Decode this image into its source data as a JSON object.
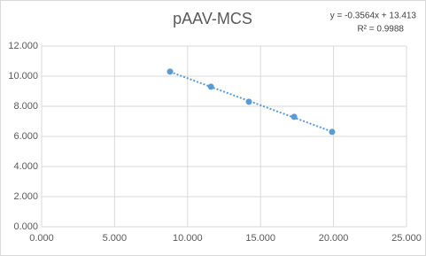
{
  "chart_data": {
    "type": "scatter",
    "title": "pAAV-MCS",
    "annotations": [
      "y = -0.3564x + 13.413",
      "R² = 0.9988"
    ],
    "x": [
      8.8,
      11.6,
      14.2,
      17.3,
      19.9
    ],
    "y": [
      10.3,
      9.3,
      8.3,
      7.3,
      6.3
    ],
    "color": "#5b9bd5",
    "trendline": "linear",
    "grid": true,
    "xlim": [
      0,
      25
    ],
    "xticks": [
      {
        "value": 0,
        "label": "0.000"
      },
      {
        "value": 5,
        "label": "5.000"
      },
      {
        "value": 10,
        "label": "10.000"
      },
      {
        "value": 15,
        "label": "15.000"
      },
      {
        "value": 20,
        "label": "20.000"
      },
      {
        "value": 25,
        "label": "25.000"
      }
    ],
    "ylim": [
      0,
      12
    ],
    "yticks": [
      {
        "value": 0,
        "label": "0.000"
      },
      {
        "value": 2,
        "label": "2.000"
      },
      {
        "value": 4,
        "label": "4.000"
      },
      {
        "value": 6,
        "label": "6.000"
      },
      {
        "value": 8,
        "label": "8.000"
      },
      {
        "value": 10,
        "label": "10.000"
      },
      {
        "value": 12,
        "label": "12.000"
      }
    ]
  }
}
